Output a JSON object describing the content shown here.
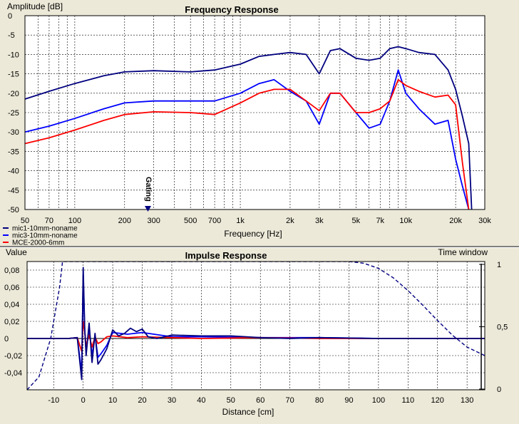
{
  "freq_chart": {
    "title": "Frequency Response",
    "ylabel": "Amplitude [dB]",
    "xlabel": "Frequency [Hz]",
    "gating_label": "Gating",
    "y_ticks": [
      "0",
      "-5",
      "-10",
      "-15",
      "-20",
      "-25",
      "-30",
      "-35",
      "-40",
      "-45",
      "-50"
    ],
    "x_ticks": [
      "50",
      "70",
      "100",
      "200",
      "300",
      "500",
      "700",
      "1k",
      "2k",
      "3k",
      "5k",
      "7k",
      "10k",
      "20k",
      "30k"
    ]
  },
  "impulse_chart": {
    "title": "Impulse Response",
    "ylabel": "Value",
    "y2label": "Time window",
    "xlabel": "Distance [cm]",
    "y_ticks": [
      "0,08",
      "0,06",
      "0,04",
      "0,02",
      "0",
      "-0,02",
      "-0,04"
    ],
    "y2_ticks": [
      "1",
      "0,5",
      "0"
    ],
    "x_ticks": [
      "-10",
      "0",
      "10",
      "20",
      "30",
      "40",
      "50",
      "60",
      "70",
      "80",
      "90",
      "100",
      "110",
      "120",
      "130"
    ]
  },
  "legend": [
    {
      "name": "mic1-10mm-noname",
      "color": "#00007f"
    },
    {
      "name": "mic3-10mm-noname",
      "color": "#0000ff"
    },
    {
      "name": "MCE-2000-6mm",
      "color": "#ff0000"
    }
  ],
  "chart_data": [
    {
      "type": "line",
      "title": "Frequency Response",
      "xlabel": "Frequency [Hz]",
      "ylabel": "Amplitude [dB]",
      "xscale": "log",
      "xlim": [
        50,
        30000
      ],
      "ylim": [
        -50,
        0
      ],
      "grid": true,
      "legend_position": "bottom-left",
      "series": [
        {
          "name": "mic1-10mm-noname",
          "color": "#00007f",
          "x": [
            50,
            70,
            100,
            150,
            200,
            300,
            500,
            700,
            1000,
            1300,
            1600,
            2000,
            2500,
            3000,
            3500,
            4000,
            5000,
            6000,
            7000,
            8000,
            9000,
            10000,
            12000,
            15000,
            18000,
            20000,
            22000,
            24000,
            25000
          ],
          "y": [
            -21.5,
            -19.5,
            -17.5,
            -15.5,
            -14.5,
            -14.2,
            -14.5,
            -14,
            -12.5,
            -10.5,
            -10,
            -9.5,
            -10,
            -15,
            -9,
            -8.5,
            -11,
            -11.5,
            -11,
            -8.5,
            -8,
            -8.5,
            -9.5,
            -10,
            -14,
            -19,
            -26,
            -33,
            -50
          ]
        },
        {
          "name": "mic3-10mm-noname",
          "color": "#0000ff",
          "x": [
            50,
            70,
            100,
            150,
            200,
            300,
            500,
            700,
            1000,
            1300,
            1600,
            2000,
            2500,
            3000,
            3500,
            4000,
            5000,
            6000,
            7000,
            8000,
            9000,
            10000,
            12000,
            15000,
            18000,
            20000,
            22000,
            24000
          ],
          "y": [
            -30,
            -28.5,
            -26.5,
            -24,
            -22.5,
            -22,
            -22,
            -22,
            -20,
            -17.5,
            -16.5,
            -19.5,
            -22,
            -28,
            -20,
            -20,
            -25,
            -29,
            -28,
            -22,
            -14,
            -20,
            -24,
            -28,
            -27,
            -37,
            -44,
            -50
          ]
        },
        {
          "name": "MCE-2000-6mm",
          "color": "#ff0000",
          "x": [
            50,
            70,
            100,
            150,
            200,
            300,
            500,
            700,
            1000,
            1300,
            1600,
            2000,
            2500,
            3000,
            3500,
            4000,
            5000,
            6000,
            7000,
            8000,
            9000,
            10000,
            12000,
            15000,
            18000,
            20000,
            22000,
            24000
          ],
          "y": [
            -33,
            -31.5,
            -29.5,
            -27,
            -25.5,
            -24.8,
            -25,
            -25.5,
            -22.5,
            -20,
            -19,
            -19,
            -22,
            -24.5,
            -20,
            -20,
            -25,
            -25,
            -24,
            -22,
            -16.5,
            -18,
            -19.5,
            -21,
            -20.5,
            -23,
            -38,
            -50
          ]
        }
      ]
    },
    {
      "type": "line",
      "title": "Impulse Response",
      "xlabel": "Distance [cm]",
      "ylabel": "Value",
      "y2label": "Time window",
      "xlim": [
        -19,
        136
      ],
      "ylim": [
        -0.06,
        0.09
      ],
      "y2lim": [
        0,
        1
      ],
      "grid": true,
      "series": [
        {
          "name": "Time window",
          "color": "#00007f",
          "dashed": true,
          "x": [
            -19,
            -15,
            -11,
            -8,
            -7,
            90,
            95,
            100,
            105,
            110,
            115,
            120,
            125,
            130,
            136
          ],
          "y": [
            -0.06,
            -0.045,
            0.0,
            0.06,
            0.09,
            0.09,
            0.088,
            0.082,
            0.071,
            0.056,
            0.039,
            0.021,
            0.004,
            -0.01,
            -0.02
          ]
        },
        {
          "name": "mic1-10mm-noname",
          "color": "#00007f",
          "x": [
            -19,
            -5,
            -2,
            -0.5,
            0,
            0.5,
            1,
            2,
            3,
            4,
            5,
            6,
            8,
            10,
            12,
            14,
            16,
            18,
            20,
            22,
            25,
            30,
            40,
            50,
            60,
            70,
            80,
            100,
            120,
            136
          ],
          "y": [
            0,
            0,
            0.001,
            -0.048,
            0.083,
            0.012,
            -0.02,
            0.018,
            -0.028,
            0.006,
            -0.03,
            -0.025,
            -0.012,
            0.01,
            0.003,
            0.006,
            0.012,
            0.008,
            0.011,
            0.002,
            0,
            0.004,
            0.003,
            0.003,
            0.001,
            0,
            0.001,
            0,
            0,
            0
          ]
        },
        {
          "name": "mic3-10mm-noname",
          "color": "#0000ff",
          "x": [
            -19,
            -5,
            -2,
            -0.5,
            0,
            0.5,
            1,
            2,
            3,
            4,
            5,
            6,
            8,
            10,
            15,
            20,
            30,
            40,
            60,
            80,
            100,
            120,
            136
          ],
          "y": [
            0,
            0,
            0.001,
            -0.04,
            0.074,
            0.01,
            -0.015,
            0.012,
            -0.02,
            0.004,
            -0.022,
            -0.018,
            -0.008,
            0.007,
            0.005,
            0.007,
            0.002,
            0.002,
            0.001,
            0.001,
            0,
            0,
            0
          ]
        },
        {
          "name": "MCE-2000-6mm",
          "color": "#ff0000",
          "x": [
            -19,
            -5,
            -2,
            -0.5,
            0,
            0.5,
            1,
            2,
            3,
            4,
            5,
            6,
            8,
            10,
            15,
            20,
            30,
            40,
            60,
            80,
            100,
            120,
            136
          ],
          "y": [
            0,
            0,
            0.001,
            -0.015,
            0.02,
            0.008,
            -0.008,
            0.004,
            -0.01,
            0.002,
            -0.006,
            -0.004,
            0.002,
            0.003,
            0.001,
            0.002,
            0.001,
            0,
            0.001,
            0,
            0,
            0,
            0
          ]
        }
      ]
    }
  ]
}
